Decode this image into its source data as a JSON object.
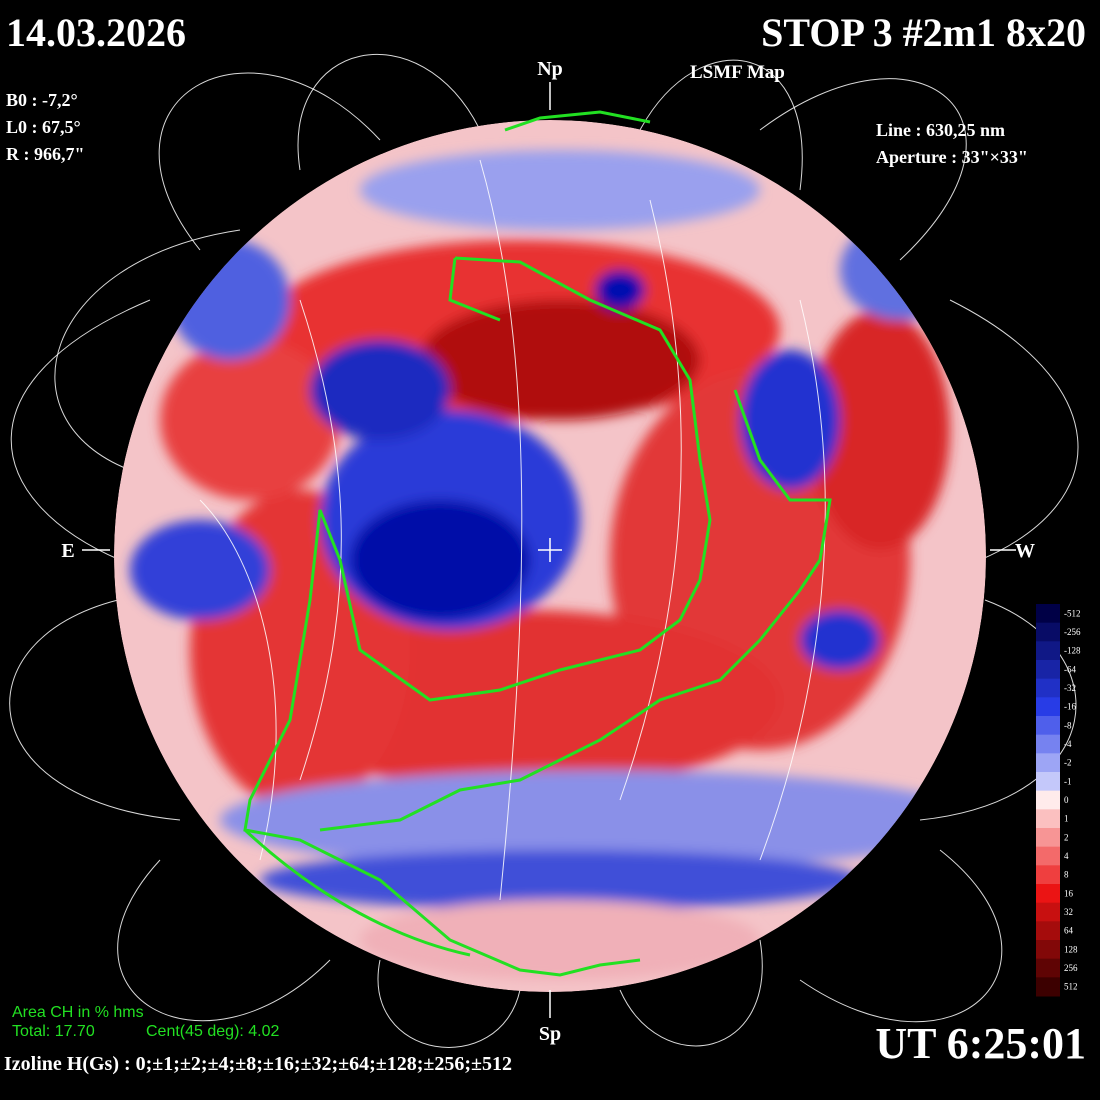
{
  "header": {
    "date": "14.03.2026",
    "title": "STOP 3 #2m1 8x20",
    "subtitle": "LSMF  Map"
  },
  "params_left": [
    "B0 : -7,2°",
    "L0 : 67,5°",
    "R  : 966,7\""
  ],
  "params_right": [
    "Line :  630,25 nm",
    "Aperture : 33\"×33\""
  ],
  "directions": {
    "north": "Np",
    "south": "Sp",
    "east": "E",
    "west": "W"
  },
  "area": {
    "title": "Area CH in % hms",
    "total": "Total: 17.70",
    "central": "Cent(45 deg): 4.02"
  },
  "time": "UT 6:25:01",
  "izoline": "Izoline H(Gs) : 0;±1;±2;±4;±8;±16;±32;±64;±128;±256;±512",
  "colorbar": [
    -512,
    -256,
    -128,
    -64,
    -32,
    -16,
    -8,
    -4,
    -2,
    -1,
    0,
    1,
    2,
    4,
    8,
    16,
    32,
    64,
    128,
    256,
    512
  ]
}
